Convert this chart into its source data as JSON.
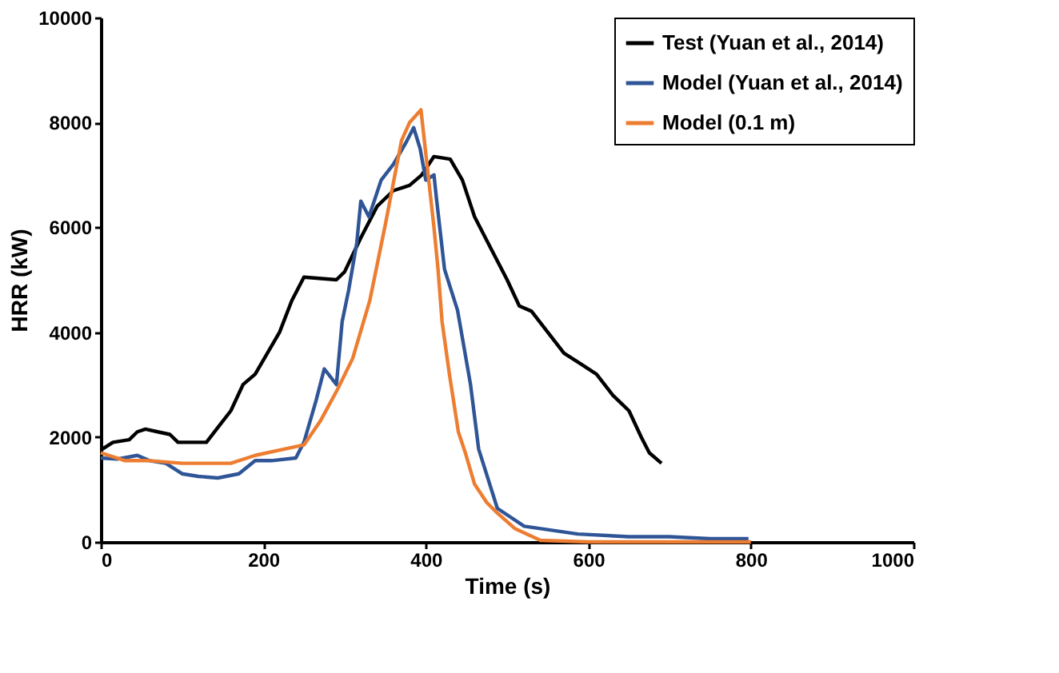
{
  "chart_data": {
    "type": "line",
    "xlabel": "Time (s)",
    "ylabel": "HRR (kW)",
    "xlim": [
      0,
      1000
    ],
    "ylim": [
      0,
      10000
    ],
    "xticks": [
      0,
      200,
      400,
      600,
      800,
      1000
    ],
    "yticks": [
      0,
      2000,
      4000,
      6000,
      8000,
      10000
    ],
    "grid": false,
    "legend": "top right",
    "marker": "none",
    "line_style": "solid",
    "series": [
      {
        "name": "Test (Yuan et al., 2014)",
        "color": "#000000",
        "x": [
          0,
          15,
          35,
          45,
          55,
          70,
          85,
          95,
          130,
          145,
          160,
          175,
          190,
          205,
          220,
          235,
          250,
          290,
          300,
          320,
          340,
          360,
          380,
          395,
          410,
          430,
          445,
          460,
          480,
          500,
          515,
          530,
          550,
          570,
          590,
          610,
          630,
          650,
          665,
          675,
          690
        ],
        "values": [
          1750,
          1900,
          1950,
          2100,
          2150,
          2100,
          2050,
          1900,
          1900,
          2200,
          2500,
          3000,
          3200,
          3600,
          4000,
          4600,
          5050,
          5000,
          5150,
          5800,
          6400,
          6700,
          6800,
          7000,
          7350,
          7300,
          6900,
          6200,
          5600,
          5000,
          4500,
          4400,
          4000,
          3600,
          3400,
          3200,
          2800,
          2500,
          2000,
          1700,
          1500
        ]
      },
      {
        "name": "Model (Yuan et al., 2014)",
        "color": "#2f5597",
        "x": [
          0,
          20,
          45,
          60,
          80,
          100,
          120,
          144,
          170,
          190,
          210,
          240,
          250,
          265,
          275,
          290,
          297,
          305,
          315,
          320,
          330,
          345,
          360,
          375,
          385,
          393,
          400,
          410,
          413,
          423,
          439,
          455,
          465,
          488,
          521,
          587,
          650,
          700,
          750,
          797
        ],
        "values": [
          1600,
          1580,
          1650,
          1550,
          1500,
          1300,
          1250,
          1220,
          1300,
          1550,
          1550,
          1600,
          1900,
          2700,
          3300,
          3000,
          4200,
          4800,
          5700,
          6500,
          6200,
          6900,
          7200,
          7600,
          7900,
          7500,
          6900,
          7000,
          6560,
          5200,
          4420,
          3000,
          1770,
          640,
          300,
          150,
          100,
          100,
          60,
          60
        ]
      },
      {
        "name": "Model (0.1 m)",
        "color": "#ed7d31",
        "x": [
          0,
          30,
          60,
          100,
          130,
          160,
          190,
          220,
          250,
          270,
          291,
          310,
          331,
          350,
          370,
          380,
          394,
          400,
          410,
          415,
          420,
          429,
          440,
          449,
          460,
          475,
          488,
          510,
          541,
          600,
          800
        ],
        "values": [
          1700,
          1550,
          1550,
          1500,
          1500,
          1500,
          1650,
          1750,
          1850,
          2300,
          2900,
          3500,
          4600,
          6040,
          7650,
          8000,
          8240,
          7400,
          6000,
          5200,
          4200,
          3200,
          2100,
          1680,
          1100,
          750,
          550,
          250,
          30,
          0,
          0
        ]
      }
    ]
  }
}
